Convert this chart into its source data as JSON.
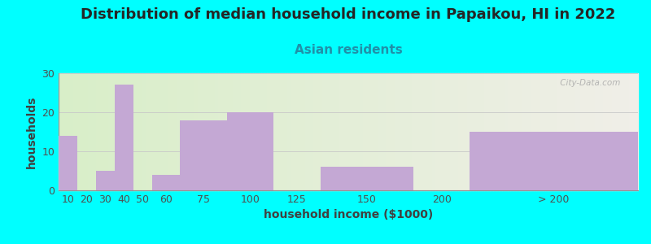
{
  "title": "Distribution of median household income in Papaikou, HI in 2022",
  "subtitle": "Asian residents",
  "xlabel": "household income ($1000)",
  "ylabel": "households",
  "bar_color": "#C4A8D4",
  "background_color": "#00FFFF",
  "categories": [
    "10",
    "20",
    "30",
    "40",
    "50",
    "60",
    "75",
    "100",
    "125",
    "150",
    "200",
    "> 200"
  ],
  "values": [
    14,
    0,
    5,
    27,
    0,
    4,
    18,
    20,
    0,
    6,
    0,
    15
  ],
  "lefts": [
    10,
    20,
    30,
    40,
    50,
    60,
    75,
    100,
    125,
    150,
    200,
    230
  ],
  "widths": [
    10,
    10,
    10,
    10,
    10,
    15,
    25,
    25,
    25,
    50,
    30,
    90
  ],
  "xlim_left": 10,
  "xlim_right": 320,
  "ylim": [
    0,
    30
  ],
  "yticks": [
    0,
    10,
    20,
    30
  ],
  "title_fontsize": 13,
  "subtitle_fontsize": 11,
  "axis_label_fontsize": 10,
  "tick_fontsize": 9,
  "watermark": " City-Data.com"
}
